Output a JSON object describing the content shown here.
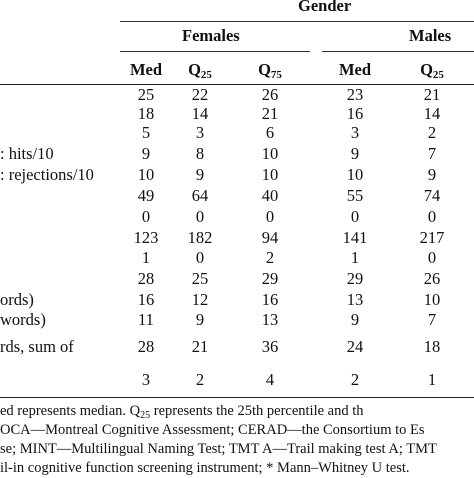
{
  "header": {
    "group_label": "Gender",
    "females_label": "Females",
    "males_label": "Males",
    "columns": [
      {
        "main": "Med",
        "sub": ""
      },
      {
        "main": "Q",
        "sub": "25"
      },
      {
        "main": "Q",
        "sub": "75"
      },
      {
        "main": "Med",
        "sub": ""
      },
      {
        "main": "Q",
        "sub": "25"
      }
    ]
  },
  "rows": [
    {
      "label": "",
      "values": [
        "25",
        "22",
        "26",
        "23",
        "21"
      ]
    },
    {
      "label": "",
      "values": [
        "18",
        "14",
        "21",
        "16",
        "14"
      ]
    },
    {
      "label": "",
      "values": [
        "5",
        "3",
        "6",
        "3",
        "2"
      ]
    },
    {
      "label": ": hits/10",
      "values": [
        "9",
        "8",
        "10",
        "9",
        "7"
      ]
    },
    {
      "label": ": rejections/10",
      "values": [
        "10",
        "9",
        "10",
        "10",
        "9"
      ]
    },
    {
      "label": "",
      "values": [
        "49",
        "64",
        "40",
        "55",
        "74"
      ]
    },
    {
      "label": "",
      "values": [
        "0",
        "0",
        "0",
        "0",
        "0"
      ]
    },
    {
      "label": "",
      "values": [
        "123",
        "182",
        "94",
        "141",
        "217"
      ]
    },
    {
      "label": "",
      "values": [
        "1",
        "0",
        "2",
        "1",
        "0"
      ]
    },
    {
      "label": "",
      "values": [
        "28",
        "25",
        "29",
        "29",
        "26"
      ]
    },
    {
      "label": "ords)",
      "values": [
        "16",
        "12",
        "16",
        "13",
        "10"
      ]
    },
    {
      "label": " words)",
      "values": [
        "11",
        "9",
        "13",
        "9",
        "7"
      ]
    },
    {
      "label": "rds, sum of",
      "values": [
        "28",
        "21",
        "36",
        "24",
        "18"
      ]
    },
    {
      "label": "",
      "values": [
        "3",
        "2",
        "4",
        "2",
        "1"
      ]
    }
  ],
  "caption": {
    "line1_a": "ed represents median.  Q",
    "line1_sub": "25",
    "line1_b": " represents the 25th percentile and th",
    "line2": "OCA—Montreal Cognitive Assessment; CERAD—the Consortium to Es",
    "line3": "se; MINT—Multilingual Naming Test; TMT A—Trail making test A; TMT",
    "line4": "il-in cognitive function screening instrument; * Mann–Whitney U test."
  }
}
